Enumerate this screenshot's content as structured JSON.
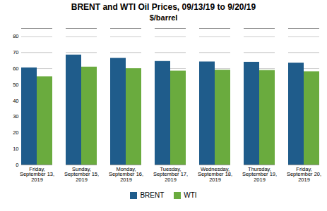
{
  "chart_data": {
    "type": "bar",
    "title": "BRENT and WTI Oil Prices, 09/13/19 to 9/20/19",
    "subtitle": "$/barrel",
    "categories": [
      "Friday,\nSeptember 13,\n2019",
      "Sunday,\nSeptember 15,\n2019",
      "Monday,\nSeptember 16,\n2019",
      "Tuesday,\nSeptember 17,\n2019",
      "Wednesday,\nSeptember 18,\n2019",
      "Thursday,\nSeptember 19,\n2019",
      "Friday,\nSeptember 20,\n2019"
    ],
    "series": [
      {
        "name": "BRENT",
        "color": "#1F5C8B",
        "values": [
          60.5,
          68.5,
          66.5,
          64.5,
          64.2,
          64.0,
          63.5
        ]
      },
      {
        "name": "WTI",
        "color": "#6AAB3E",
        "values": [
          55.0,
          61.0,
          60.0,
          58.5,
          59.1,
          58.9,
          58.1
        ]
      }
    ],
    "ylim": [
      0,
      85
    ],
    "yticks": [
      0,
      10,
      20,
      30,
      40,
      50,
      60,
      70,
      80
    ],
    "grid": true,
    "legend": "bottom"
  }
}
